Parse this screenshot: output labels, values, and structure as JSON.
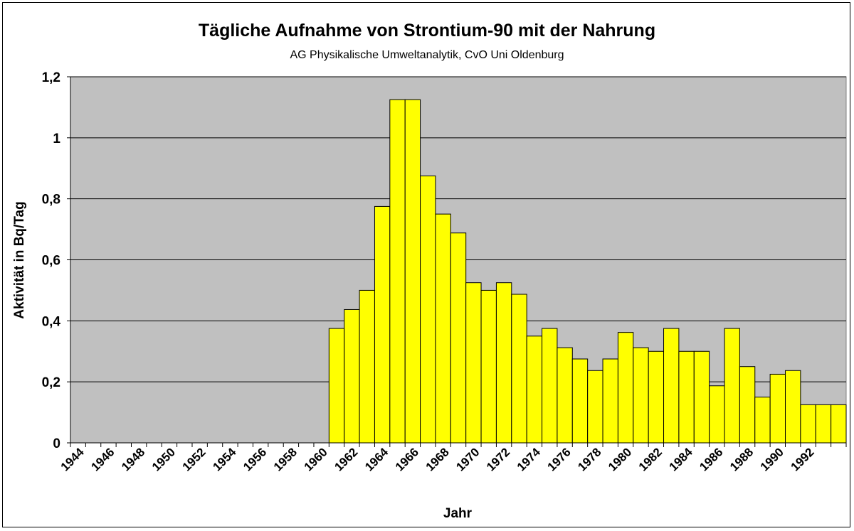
{
  "chart_data": {
    "type": "bar",
    "title": "Tägliche Aufnahme von Strontium-90 mit der Nahrung",
    "subtitle": "AG Physikalische Umweltanalytik, CvO Uni Oldenburg",
    "xlabel": "Jahr",
    "ylabel": "Aktivität in Bq/Tag",
    "ylim": [
      0,
      1.2
    ],
    "yticks": [
      "0",
      "0,2",
      "0,4",
      "0,6",
      "0,8",
      "1",
      "1,2"
    ],
    "xtick_labels": [
      "1944",
      "1946",
      "1948",
      "1950",
      "1952",
      "1954",
      "1956",
      "1958",
      "1960",
      "1962",
      "1964",
      "1966",
      "1968",
      "1970",
      "1972",
      "1974",
      "1976",
      "1978",
      "1980",
      "1982",
      "1984",
      "1986",
      "1988",
      "1990",
      "1992"
    ],
    "categories": [
      "1944",
      "1945",
      "1946",
      "1947",
      "1948",
      "1949",
      "1950",
      "1951",
      "1952",
      "1953",
      "1954",
      "1955",
      "1956",
      "1957",
      "1958",
      "1959",
      "1960",
      "1961",
      "1962",
      "1963",
      "1964",
      "1965",
      "1966",
      "1967",
      "1968",
      "1969",
      "1970",
      "1971",
      "1972",
      "1973",
      "1974",
      "1975",
      "1976",
      "1977",
      "1978",
      "1979",
      "1980",
      "1981",
      "1982",
      "1983",
      "1984",
      "1985",
      "1986",
      "1987",
      "1988",
      "1989",
      "1990",
      "1991",
      "1992",
      "1993",
      "1994"
    ],
    "values": [
      0,
      0,
      0,
      0,
      0,
      0,
      0,
      0,
      0,
      0,
      0,
      0,
      0,
      0,
      0,
      0,
      0,
      0.375,
      0.437,
      0.5,
      0.775,
      1.125,
      1.125,
      0.875,
      0.75,
      0.688,
      0.525,
      0.5,
      0.525,
      0.487,
      0.35,
      0.375,
      0.312,
      0.275,
      0.237,
      0.275,
      0.362,
      0.312,
      0.3,
      0.375,
      0.3,
      0.3,
      0.187,
      0.375,
      0.25,
      0.15,
      0.225,
      0.237,
      0.125,
      0.125,
      0.125
    ],
    "grid": true,
    "bar_color": "#ffff00",
    "plot_background": "#c0c0c0"
  }
}
